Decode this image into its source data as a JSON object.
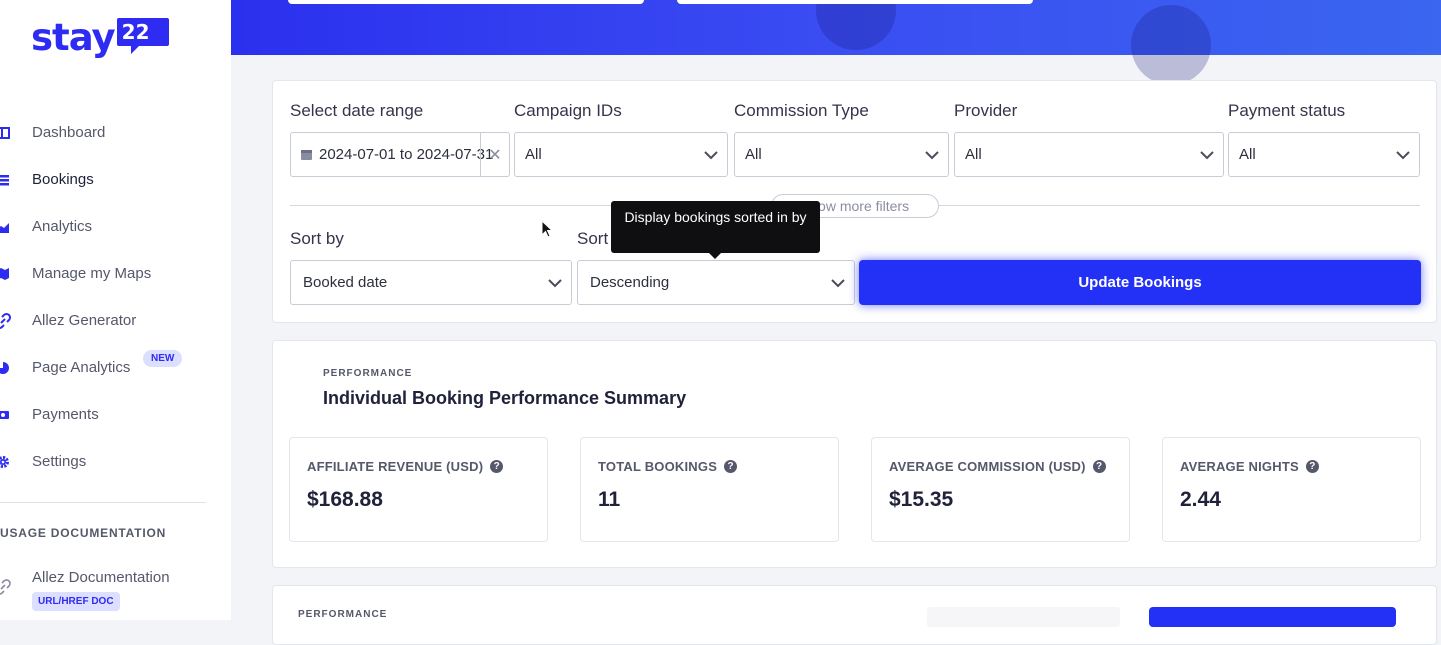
{
  "colors": {
    "brand": "#2e2cf2",
    "primary_button": "#2330f5"
  },
  "logo": {
    "text": "stay",
    "bubble": "22"
  },
  "sidebar": {
    "items": [
      {
        "label": "Dashboard",
        "icon": "dashboard-icon"
      },
      {
        "label": "Bookings",
        "icon": "list-icon"
      },
      {
        "label": "Analytics",
        "icon": "chart-icon"
      },
      {
        "label": "Manage my Maps",
        "icon": "map-icon"
      },
      {
        "label": "Allez Generator",
        "icon": "link-icon"
      },
      {
        "label": "Page Analytics",
        "icon": "pie-icon",
        "badge": "NEW"
      },
      {
        "label": "Payments",
        "icon": "money-icon"
      },
      {
        "label": "Settings",
        "icon": "gear-icon"
      }
    ],
    "usage_title": "USAGE DOCUMENTATION",
    "doc_item": "Allez Documentation",
    "doc_badge": "URL/HREF DOC"
  },
  "filters": {
    "date_label": "Select date range",
    "date_value": "2024-07-01 to 2024-07-31",
    "campaign_label": "Campaign IDs",
    "campaign_value": "All",
    "commission_label": "Commission Type",
    "commission_value": "All",
    "provider_label": "Provider",
    "provider_value": "All",
    "payment_label": "Payment status",
    "payment_value": "All",
    "more_filters": "Show more filters",
    "sort_by_label": "Sort by",
    "sort_by_value": "Booked date",
    "sort_order_label": "Sort order",
    "sort_order_value": "Descending",
    "update_button": "Update Bookings",
    "tooltip": "Display bookings sorted in by"
  },
  "performance": {
    "eyebrow": "PERFORMANCE",
    "title": "Individual Booking Performance Summary",
    "stats": [
      {
        "label": "AFFILIATE REVENUE (USD)",
        "value": "$168.88"
      },
      {
        "label": "TOTAL BOOKINGS",
        "value": "11"
      },
      {
        "label": "AVERAGE COMMISSION (USD)",
        "value": "$15.35"
      },
      {
        "label": "AVERAGE NIGHTS",
        "value": "2.44"
      }
    ]
  },
  "performance2": {
    "eyebrow": "PERFORMANCE"
  }
}
